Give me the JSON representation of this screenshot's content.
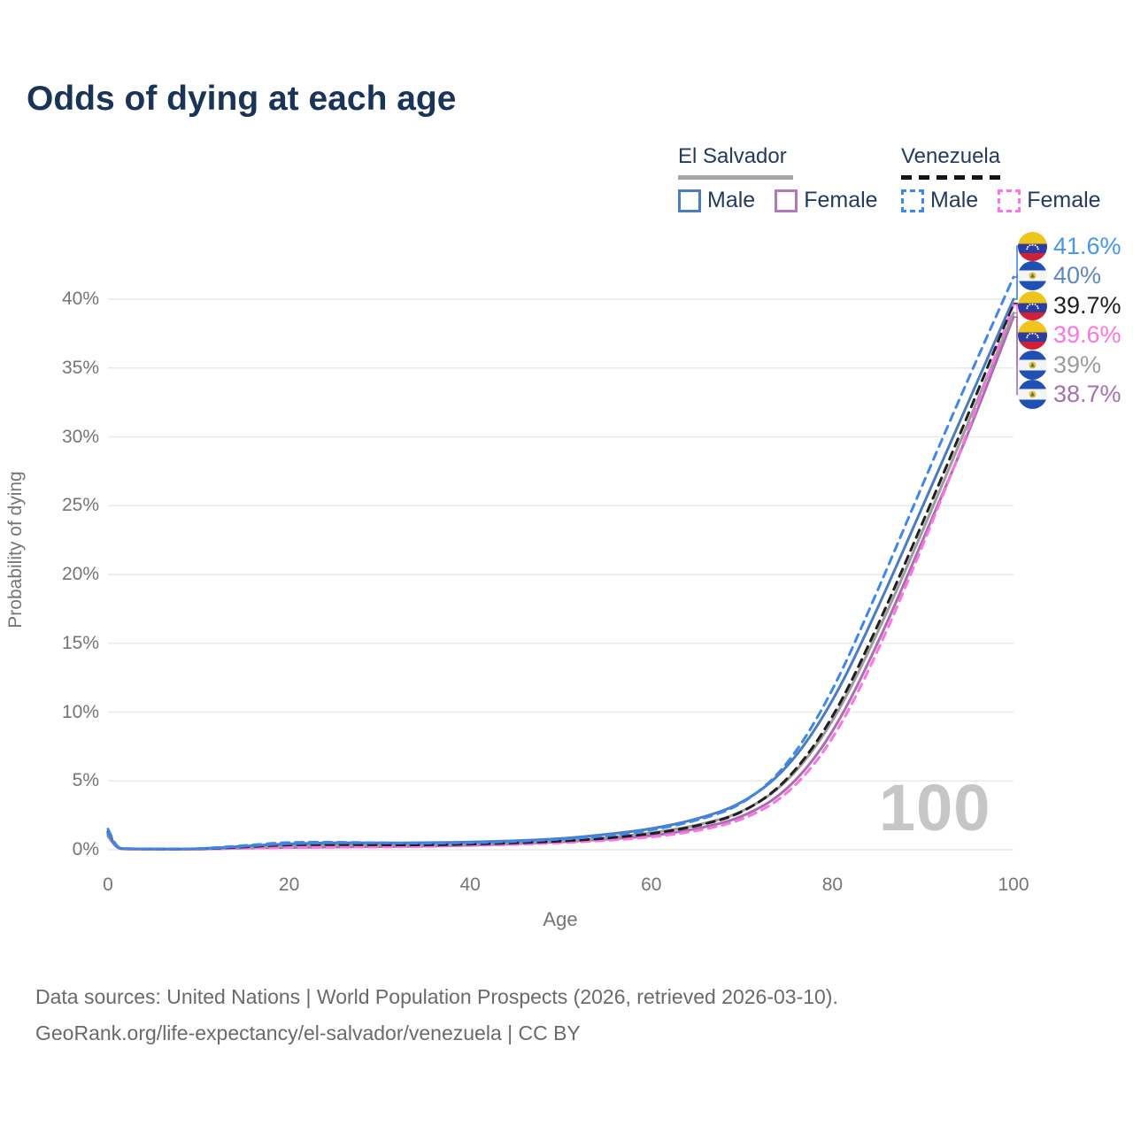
{
  "title": "Odds of dying at each age",
  "legend": {
    "groups": [
      {
        "country": "El Salvador",
        "line_style": "solid",
        "underline_color": "#a6a6a6",
        "items": [
          {
            "label": "Male",
            "color": "#4a7cc1",
            "dashed": false
          },
          {
            "label": "Female",
            "color": "#b479bd",
            "dashed": false
          }
        ]
      },
      {
        "country": "Venezuela",
        "line_style": "dashed",
        "underline_color": "#141414",
        "items": [
          {
            "label": "Male",
            "color": "#3e87ef",
            "dashed": true
          },
          {
            "label": "Female",
            "color": "#fc74e4",
            "dashed": true
          }
        ]
      }
    ]
  },
  "chart_data": {
    "type": "line",
    "title": "Odds of dying at each age",
    "xlabel": "Age",
    "ylabel": "Probability of dying",
    "x_ticks": [
      0,
      20,
      40,
      60,
      80,
      100
    ],
    "y_ticks": [
      "0%",
      "5%",
      "10%",
      "15%",
      "20%",
      "25%",
      "30%",
      "35%",
      "40%"
    ],
    "xlim": [
      0,
      100
    ],
    "ylim": [
      0,
      40
    ],
    "grid": "horizontal",
    "legend_position": "top-right",
    "ages": [
      0,
      1,
      2,
      5,
      10,
      15,
      20,
      25,
      30,
      35,
      40,
      45,
      50,
      55,
      60,
      65,
      70,
      75,
      80,
      85,
      90,
      95,
      100
    ],
    "series": [
      {
        "name": "Venezuela Male",
        "country": "venezuela",
        "sex": "male",
        "style": "dashed",
        "color": "#3e87ef",
        "end_value": 41.6,
        "values": [
          1.5,
          0.12,
          0.08,
          0.06,
          0.06,
          0.3,
          0.55,
          0.55,
          0.5,
          0.47,
          0.5,
          0.6,
          0.75,
          1.0,
          1.4,
          2.1,
          3.2,
          6.0,
          11.4,
          18.8,
          26.6,
          34.2,
          41.6
        ]
      },
      {
        "name": "El Salvador Male",
        "country": "el-salvador",
        "sex": "male",
        "style": "solid",
        "color": "#4a7cc1",
        "end_value": 40,
        "values": [
          1.2,
          0.1,
          0.07,
          0.05,
          0.05,
          0.25,
          0.45,
          0.5,
          0.5,
          0.5,
          0.55,
          0.65,
          0.8,
          1.1,
          1.5,
          2.2,
          3.3,
          5.8,
          10.6,
          17.5,
          25.0,
          32.5,
          40.0
        ]
      },
      {
        "name": "Venezuela Both sexes",
        "country": "venezuela",
        "sex": "both",
        "style": "dashed",
        "color": "#1f1f1f",
        "end_value": 39.7,
        "values": [
          1.3,
          0.1,
          0.07,
          0.05,
          0.05,
          0.2,
          0.37,
          0.37,
          0.36,
          0.35,
          0.4,
          0.5,
          0.62,
          0.82,
          1.15,
          1.7,
          2.6,
          4.9,
          9.4,
          16.2,
          23.8,
          31.6,
          39.7
        ]
      },
      {
        "name": "Venezuela Female",
        "country": "venezuela",
        "sex": "female",
        "style": "dashed",
        "color": "#fc74e4",
        "end_value": 39.6,
        "values": [
          1.2,
          0.09,
          0.06,
          0.04,
          0.04,
          0.12,
          0.16,
          0.18,
          0.2,
          0.24,
          0.3,
          0.38,
          0.5,
          0.67,
          0.9,
          1.35,
          2.1,
          3.9,
          7.8,
          14.3,
          22.1,
          30.4,
          39.6
        ]
      },
      {
        "name": "El Salvador Both sexes",
        "country": "el-salvador",
        "sex": "both",
        "style": "solid",
        "color": "#9c9c9c",
        "end_value": 39,
        "values": [
          1.1,
          0.09,
          0.06,
          0.04,
          0.04,
          0.17,
          0.3,
          0.33,
          0.34,
          0.36,
          0.41,
          0.5,
          0.63,
          0.85,
          1.2,
          1.75,
          2.65,
          4.8,
          9.1,
          15.7,
          23.2,
          31.0,
          39.0
        ]
      },
      {
        "name": "El Salvador Female",
        "country": "el-salvador",
        "sex": "female",
        "style": "solid",
        "color": "#aa6cb2",
        "end_value": 38.7,
        "values": [
          1.0,
          0.08,
          0.05,
          0.04,
          0.04,
          0.12,
          0.16,
          0.19,
          0.22,
          0.26,
          0.33,
          0.43,
          0.56,
          0.75,
          1.0,
          1.5,
          2.3,
          4.2,
          8.3,
          14.9,
          22.5,
          30.2,
          38.7
        ]
      }
    ],
    "end_labels": [
      {
        "text": "41.6%",
        "color": "#4596ec",
        "country": "venezuela"
      },
      {
        "text": "40%",
        "color": "#5e87c6",
        "country": "el-salvador"
      },
      {
        "text": "39.7%",
        "color": "#1f1f1f",
        "country": "venezuela"
      },
      {
        "text": "39.6%",
        "color": "#fc74e4",
        "country": "venezuela"
      },
      {
        "text": "39%",
        "color": "#9c9c9c",
        "country": "el-salvador"
      },
      {
        "text": "38.7%",
        "color": "#a76fb0",
        "country": "el-salvador"
      }
    ],
    "hover_age_indicator": "100"
  },
  "footer": {
    "line1": "Data sources: United Nations | World Population Prospects (2026, retrieved 2026-03-10).",
    "line2": "GeoRank.org/life-expectancy/el-salvador/venezuela | CC BY"
  }
}
